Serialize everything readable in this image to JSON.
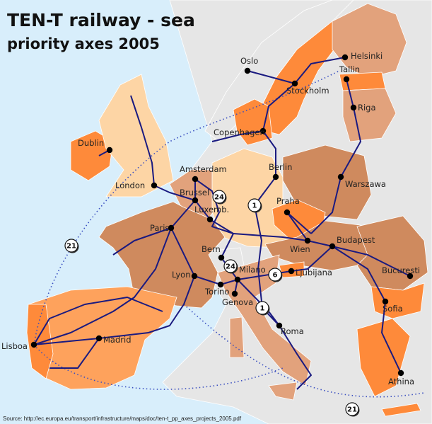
{
  "title_line1": "TEN-T railway - sea",
  "title_line2": "priority axes 2005",
  "source": "Source: http://ec.europa.eu/transport/infrastructure/maps/doc/ten-t_pp_axes_projects_2005.pdf",
  "colors": {
    "sea": "#d8eefb",
    "non_member": "#e6e6e6",
    "brown": "#cf8a5e",
    "tan": "#fdd5a5",
    "orange": "#fe8a3a",
    "pink": "#e2a27c",
    "rail": "#1a1a80",
    "sea_route": "#3a4fc0"
  },
  "cities": [
    "Dublin",
    "London",
    "Amsterdam",
    "Brussel",
    "Luxemb.",
    "Paris",
    "Berlin",
    "Praha",
    "Warszawa",
    "Wien",
    "Budapest",
    "Ljubijana",
    "Bern",
    "Milano",
    "Torino",
    "Genova",
    "Lyon",
    "Roma",
    "Madrid",
    "Lisboa",
    "Athina",
    "Sofia",
    "Bucuresti",
    "Oslo",
    "Stockholm",
    "Copenhagen",
    "Helsinki",
    "Tallin",
    "Riga"
  ],
  "axis_badges": [
    "1",
    "1",
    "24",
    "24",
    "6",
    "21",
    "21"
  ]
}
